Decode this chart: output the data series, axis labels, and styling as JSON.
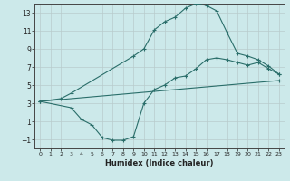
{
  "xlabel": "Humidex (Indice chaleur)",
  "xlim": [
    -0.5,
    23.5
  ],
  "ylim": [
    -2.0,
    14.0
  ],
  "yticks": [
    -1,
    1,
    3,
    5,
    7,
    9,
    11,
    13
  ],
  "xticks": [
    0,
    1,
    2,
    3,
    4,
    5,
    6,
    7,
    8,
    9,
    10,
    11,
    12,
    13,
    14,
    15,
    16,
    17,
    18,
    19,
    20,
    21,
    22,
    23
  ],
  "bg_color": "#cce9ea",
  "line_color": "#2a6e6a",
  "grid_color": "#c0d8d8",
  "curve1_x": [
    0,
    2,
    3,
    9,
    10,
    11,
    12,
    13,
    14,
    15,
    16,
    17,
    18,
    19,
    20,
    21,
    22,
    23
  ],
  "curve1_y": [
    3.2,
    3.5,
    4.1,
    8.2,
    9.0,
    11.1,
    12.0,
    12.5,
    13.5,
    14.0,
    13.8,
    13.2,
    10.8,
    8.5,
    8.2,
    7.8,
    7.1,
    6.2
  ],
  "curve2_x": [
    0,
    3,
    4,
    5,
    6,
    7,
    8,
    9,
    10,
    11,
    12,
    13,
    14,
    15,
    16,
    17,
    18,
    19,
    20,
    21,
    22,
    23
  ],
  "curve2_y": [
    3.2,
    2.5,
    1.2,
    0.6,
    -0.8,
    -1.1,
    -1.1,
    -0.7,
    3.0,
    4.5,
    5.0,
    5.8,
    6.0,
    6.8,
    7.8,
    8.0,
    7.8,
    7.5,
    7.2,
    7.5,
    6.8,
    6.2
  ],
  "curve3_x": [
    0,
    23
  ],
  "curve3_y": [
    3.2,
    5.5
  ]
}
